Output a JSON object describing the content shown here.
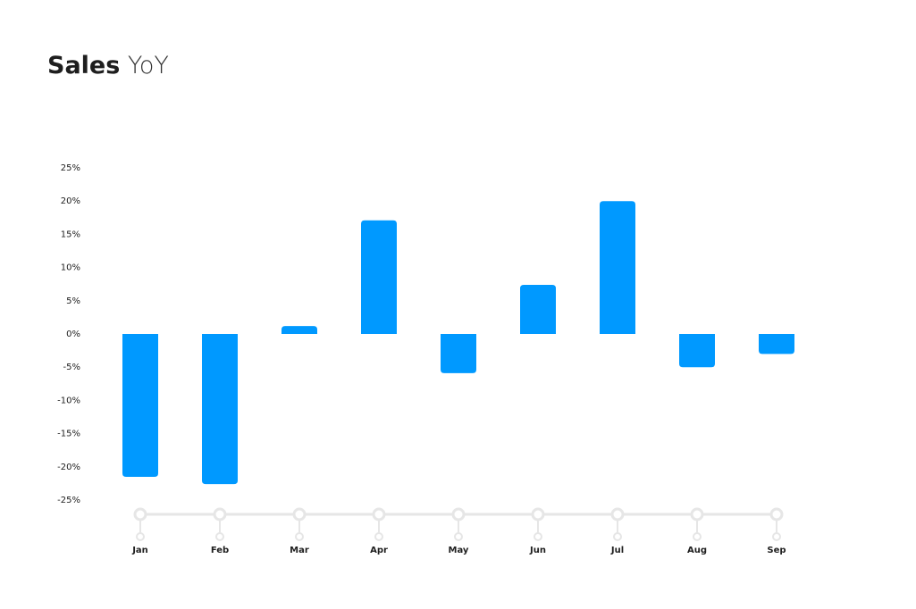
{
  "chart_data": {
    "type": "bar",
    "title": "Sales",
    "subtitle": "YoY",
    "categories": [
      "Jan",
      "Feb",
      "Mar",
      "Apr",
      "May",
      "Jun",
      "Jul",
      "Aug",
      "Sep"
    ],
    "values": [
      -21.5,
      -22.6,
      1.2,
      17.1,
      -5.9,
      7.4,
      20,
      -5,
      -3
    ],
    "color": "#0099ff",
    "ylim": [
      -25,
      25
    ],
    "yticks": [
      {
        "value": 25,
        "label": "25%"
      },
      {
        "value": 20,
        "label": "20%"
      },
      {
        "value": 15,
        "label": "15%"
      },
      {
        "value": 10,
        "label": "10%"
      },
      {
        "value": 5,
        "label": "5%"
      },
      {
        "value": 0,
        "label": "0%"
      },
      {
        "value": -5,
        "label": "-5%"
      },
      {
        "value": -10,
        "label": "-10%"
      },
      {
        "value": -15,
        "label": "-15%"
      },
      {
        "value": -20,
        "label": "-20%"
      },
      {
        "value": -25,
        "label": "-25%"
      }
    ],
    "grid": false
  }
}
